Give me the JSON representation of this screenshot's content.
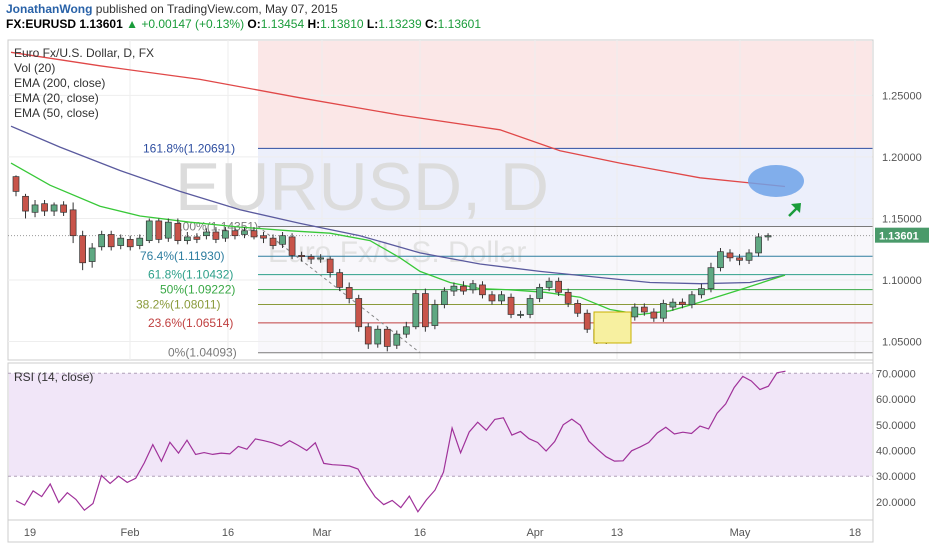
{
  "header": {
    "author": "JonathanWong",
    "published": "published on TradingView.com, May 07, 2015",
    "symbol": "FX:EURUSD",
    "price": "1.13601",
    "change": "+0.00147 (+0.13%)",
    "ohlc": [
      {
        "k": "O:",
        "v": "1.13454"
      },
      {
        "k": "H:",
        "v": "1.13810"
      },
      {
        "k": "L:",
        "v": "1.13239"
      },
      {
        "k": "C:",
        "v": "1.13601"
      }
    ]
  },
  "watermark": {
    "main": "EURUSD, D",
    "sub": "Euro Fx/U.S. Dollar"
  },
  "colors": {
    "up": "#5fa882",
    "down": "#c8544a",
    "ema200": "#e04848",
    "ema50": "#5a5a9e",
    "ema20": "#38c838",
    "rsi": "#a0329a",
    "fib": "#2e4ea0",
    "accent": "#1a9c3a"
  },
  "legend": [
    "Euro Fx/U.S. Dollar, D, FX",
    "Vol (20)",
    "EMA (200, close)",
    "EMA (20, close)",
    "EMA (50, close)"
  ],
  "chart_data": {
    "type": "line",
    "title": "Euro Fx/U.S. Dollar, D, FX",
    "xlabel": "",
    "ylabel": "",
    "x_ticks": [
      "19",
      "Feb",
      "16",
      "Mar",
      "16",
      "Apr",
      "13",
      "May",
      "18"
    ],
    "y_ticks": [
      "1.25000",
      "1.20000",
      "1.15000",
      "1.10000",
      "1.05000"
    ],
    "ylim": [
      1.035,
      1.295
    ],
    "last_price_label": "1.13601",
    "candles": [
      [
        1.184,
        1.172,
        1.185,
        1.168
      ],
      [
        1.168,
        1.156,
        1.17,
        1.15
      ],
      [
        1.155,
        1.161,
        1.165,
        1.151
      ],
      [
        1.162,
        1.156,
        1.165,
        1.152
      ],
      [
        1.156,
        1.161,
        1.163,
        1.152
      ],
      [
        1.161,
        1.155,
        1.164,
        1.152
      ],
      [
        1.157,
        1.136,
        1.163,
        1.13
      ],
      [
        1.136,
        1.114,
        1.14,
        1.108
      ],
      [
        1.115,
        1.126,
        1.13,
        1.11
      ],
      [
        1.127,
        1.137,
        1.14,
        1.124
      ],
      [
        1.137,
        1.127,
        1.14,
        1.124
      ],
      [
        1.128,
        1.134,
        1.137,
        1.125
      ],
      [
        1.133,
        1.127,
        1.136,
        1.124
      ],
      [
        1.128,
        1.134,
        1.137,
        1.125
      ],
      [
        1.132,
        1.148,
        1.15,
        1.13
      ],
      [
        1.148,
        1.133,
        1.15,
        1.13
      ],
      [
        1.134,
        1.147,
        1.15,
        1.131
      ],
      [
        1.146,
        1.132,
        1.15,
        1.129
      ],
      [
        1.132,
        1.135,
        1.139,
        1.129
      ],
      [
        1.135,
        1.133,
        1.138,
        1.13
      ],
      [
        1.136,
        1.139,
        1.142,
        1.133
      ],
      [
        1.139,
        1.133,
        1.143,
        1.13
      ],
      [
        1.134,
        1.14,
        1.143,
        1.131
      ],
      [
        1.14,
        1.136,
        1.143,
        1.133
      ],
      [
        1.137,
        1.14,
        1.143,
        1.134
      ],
      [
        1.14,
        1.135,
        1.143,
        1.133
      ],
      [
        1.136,
        1.134,
        1.139,
        1.13
      ],
      [
        1.134,
        1.128,
        1.137,
        1.125
      ],
      [
        1.129,
        1.136,
        1.139,
        1.126
      ],
      [
        1.135,
        1.12,
        1.138,
        1.117
      ],
      [
        1.12,
        1.119,
        1.123,
        1.115
      ],
      [
        1.119,
        1.117,
        1.121,
        1.113
      ],
      [
        1.117,
        1.118,
        1.121,
        1.114
      ],
      [
        1.117,
        1.106,
        1.119,
        1.102
      ],
      [
        1.106,
        1.094,
        1.109,
        1.091
      ],
      [
        1.094,
        1.085,
        1.098,
        1.081
      ],
      [
        1.085,
        1.062,
        1.088,
        1.058
      ],
      [
        1.062,
        1.048,
        1.065,
        1.044
      ],
      [
        1.048,
        1.06,
        1.063,
        1.045
      ],
      [
        1.06,
        1.046,
        1.062,
        1.042
      ],
      [
        1.047,
        1.056,
        1.059,
        1.044
      ],
      [
        1.056,
        1.062,
        1.066,
        1.053
      ],
      [
        1.062,
        1.089,
        1.092,
        1.06
      ],
      [
        1.089,
        1.062,
        1.093,
        1.058
      ],
      [
        1.063,
        1.08,
        1.084,
        1.06
      ],
      [
        1.08,
        1.091,
        1.094,
        1.077
      ],
      [
        1.091,
        1.095,
        1.098,
        1.087
      ],
      [
        1.095,
        1.091,
        1.099,
        1.088
      ],
      [
        1.092,
        1.097,
        1.1,
        1.089
      ],
      [
        1.096,
        1.088,
        1.099,
        1.085
      ],
      [
        1.088,
        1.083,
        1.091,
        1.08
      ],
      [
        1.083,
        1.088,
        1.091,
        1.08
      ],
      [
        1.086,
        1.072,
        1.089,
        1.069
      ],
      [
        1.072,
        1.072,
        1.075,
        1.069
      ],
      [
        1.072,
        1.085,
        1.088,
        1.069
      ],
      [
        1.085,
        1.094,
        1.097,
        1.082
      ],
      [
        1.094,
        1.099,
        1.102,
        1.091
      ],
      [
        1.099,
        1.09,
        1.102,
        1.087
      ],
      [
        1.09,
        1.081,
        1.093,
        1.078
      ],
      [
        1.081,
        1.073,
        1.084,
        1.07
      ],
      [
        1.073,
        1.06,
        1.076,
        1.057
      ],
      [
        1.06,
        1.051,
        1.063,
        1.048
      ],
      [
        1.051,
        1.058,
        1.061,
        1.048
      ],
      [
        1.058,
        1.066,
        1.069,
        1.055
      ],
      [
        1.066,
        1.07,
        1.073,
        1.063
      ],
      [
        1.07,
        1.078,
        1.081,
        1.067
      ],
      [
        1.078,
        1.074,
        1.081,
        1.071
      ],
      [
        1.074,
        1.069,
        1.077,
        1.066
      ],
      [
        1.069,
        1.081,
        1.084,
        1.066
      ],
      [
        1.078,
        1.082,
        1.085,
        1.075
      ],
      [
        1.082,
        1.08,
        1.085,
        1.077
      ],
      [
        1.08,
        1.088,
        1.091,
        1.077
      ],
      [
        1.088,
        1.093,
        1.097,
        1.085
      ],
      [
        1.093,
        1.11,
        1.114,
        1.09
      ],
      [
        1.11,
        1.123,
        1.126,
        1.107
      ],
      [
        1.122,
        1.118,
        1.125,
        1.115
      ],
      [
        1.118,
        1.116,
        1.121,
        1.112
      ],
      [
        1.116,
        1.122,
        1.125,
        1.113
      ],
      [
        1.122,
        1.135,
        1.138,
        1.119
      ],
      [
        1.135,
        1.136,
        1.138,
        1.132
      ]
    ],
    "ema200": [
      [
        11,
        1.285
      ],
      [
        100,
        1.274
      ],
      [
        200,
        1.263
      ],
      [
        300,
        1.248
      ],
      [
        400,
        1.234
      ],
      [
        500,
        1.222
      ],
      [
        560,
        1.205
      ],
      [
        620,
        1.195
      ],
      [
        700,
        1.183
      ],
      [
        785,
        1.176
      ]
    ],
    "ema50": [
      [
        11,
        1.225
      ],
      [
        60,
        1.208
      ],
      [
        120,
        1.189
      ],
      [
        180,
        1.172
      ],
      [
        240,
        1.157
      ],
      [
        300,
        1.146
      ],
      [
        360,
        1.136
      ],
      [
        420,
        1.122
      ],
      [
        480,
        1.113
      ],
      [
        540,
        1.107
      ],
      [
        600,
        1.102
      ],
      [
        650,
        1.098
      ],
      [
        700,
        1.097
      ],
      [
        750,
        1.098
      ],
      [
        785,
        1.104
      ]
    ],
    "ema20": [
      [
        11,
        1.195
      ],
      [
        50,
        1.177
      ],
      [
        100,
        1.16
      ],
      [
        140,
        1.152
      ],
      [
        190,
        1.147
      ],
      [
        240,
        1.143
      ],
      [
        290,
        1.14
      ],
      [
        330,
        1.138
      ],
      [
        370,
        1.132
      ],
      [
        400,
        1.118
      ],
      [
        420,
        1.107
      ],
      [
        450,
        1.098
      ],
      [
        480,
        1.093
      ],
      [
        510,
        1.092
      ],
      [
        545,
        1.09
      ],
      [
        580,
        1.086
      ],
      [
        610,
        1.076
      ],
      [
        640,
        1.072
      ],
      [
        670,
        1.075
      ],
      [
        700,
        1.082
      ],
      [
        740,
        1.092
      ],
      [
        785,
        1.104
      ]
    ],
    "fib": [
      {
        "label": "161.8%(1.20691)",
        "value": 1.20691,
        "color": "#2e4ea0"
      },
      {
        "label": "100%(1.14351)",
        "value": 1.14351,
        "color": "#7a7a7a"
      },
      {
        "label": "76.4%(1.11930)",
        "value": 1.1193,
        "color": "#2e7ea0"
      },
      {
        "label": "61.8%(1.10432)",
        "value": 1.10432,
        "color": "#2ea08a"
      },
      {
        "label": "50%(1.09222)",
        "value": 1.09222,
        "color": "#39a845"
      },
      {
        "label": "38.2%(1.08011)",
        "value": 1.08011,
        "color": "#8a9a3a"
      },
      {
        "label": "23.6%(1.06514)",
        "value": 1.06514,
        "color": "#c04040"
      },
      {
        "label": "0%(1.04093)",
        "value": 1.04093,
        "color": "#7a7a7a"
      }
    ],
    "rsi": {
      "label": "RSI (14, close)",
      "ylim": [
        13,
        74
      ],
      "y_ticks": [
        "70.0000",
        "60.0000",
        "50.0000",
        "40.0000",
        "30.0000",
        "20.0000"
      ],
      "levels": [
        70,
        30
      ],
      "values": [
        20.5,
        18.8,
        24.3,
        22.1,
        27.0,
        19.8,
        23.6,
        21.0,
        16.8,
        19.4,
        30.3,
        27.2,
        30.0,
        27.6,
        29.2,
        35.2,
        42.3,
        35.8,
        43.2,
        39.0,
        44.0,
        38.5,
        39.2,
        38.5,
        39.0,
        38.7,
        41.6,
        40.5,
        44.5,
        43.8,
        43.0,
        41.7,
        43.8,
        42.0,
        40.0,
        43.0,
        35.0,
        34.5,
        34.3,
        34.0,
        32.8,
        27.0,
        22.0,
        19.0,
        20.6,
        17.8,
        22.3,
        16.2,
        20.8,
        24.6,
        31.6,
        48.7,
        39.1,
        47.2,
        51.0,
        47.9,
        52.1,
        52.7,
        46.0,
        47.4,
        44.6,
        43.1,
        39.8,
        43.5,
        50.0,
        52.2,
        49.8,
        43.6,
        40.5,
        37.6,
        35.9,
        36.0,
        39.9,
        41.4,
        43.1,
        46.8,
        49.0,
        46.4,
        47.1,
        46.6,
        49.5,
        48.4,
        54.5,
        58.1,
        64.5,
        68.8,
        67.0,
        63.7,
        65.0,
        70.2,
        70.8
      ]
    }
  }
}
